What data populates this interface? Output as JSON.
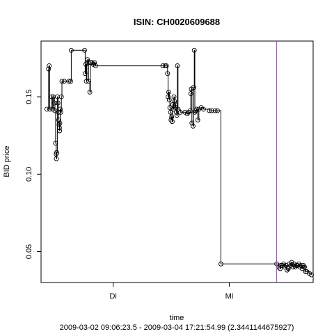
{
  "chart_data": {
    "type": "scatter",
    "title": "ISIN: CH0020609688",
    "xlabel": "time",
    "subtitle": "2009-03-02 09:06:23.5 - 2009-03-04 17:21:54.99 (2.3441144675927)",
    "ylabel": "BID price",
    "xlim": [
      0,
      2.3441144675927
    ],
    "ylim": [
      0.03,
      0.186
    ],
    "x_ticks": [
      {
        "value": 0.6215,
        "label": "Di"
      },
      {
        "value": 1.6215,
        "label": "Mi"
      }
    ],
    "y_ticks": [
      {
        "value": 0.05,
        "label": "0.05"
      },
      {
        "value": 0.1,
        "label": "0.10"
      },
      {
        "value": 0.15,
        "label": "0.15"
      }
    ],
    "vline": {
      "x": 2.03,
      "color": "#a040c0"
    },
    "grid": false,
    "series": [
      {
        "style": "step line with open circles",
        "points": [
          [
            0.05,
            0.142
          ],
          [
            0.065,
            0.168
          ],
          [
            0.07,
            0.17
          ],
          [
            0.075,
            0.142
          ],
          [
            0.09,
            0.15
          ],
          [
            0.1,
            0.142
          ],
          [
            0.105,
            0.15
          ],
          [
            0.115,
            0.146
          ],
          [
            0.12,
            0.141
          ],
          [
            0.125,
            0.12
          ],
          [
            0.13,
            0.113
          ],
          [
            0.132,
            0.11
          ],
          [
            0.135,
            0.114
          ],
          [
            0.14,
            0.15
          ],
          [
            0.145,
            0.146
          ],
          [
            0.15,
            0.14
          ],
          [
            0.152,
            0.135
          ],
          [
            0.155,
            0.132
          ],
          [
            0.158,
            0.13
          ],
          [
            0.16,
            0.128
          ],
          [
            0.162,
            0.133
          ],
          [
            0.165,
            0.142
          ],
          [
            0.17,
            0.14
          ],
          [
            0.175,
            0.15
          ],
          [
            0.18,
            0.16
          ],
          [
            0.2,
            0.16
          ],
          [
            0.24,
            0.16
          ],
          [
            0.255,
            0.16
          ],
          [
            0.26,
            0.18
          ],
          [
            0.375,
            0.18
          ],
          [
            0.38,
            0.165
          ],
          [
            0.385,
            0.171
          ],
          [
            0.39,
            0.16
          ],
          [
            0.395,
            0.172
          ],
          [
            0.4,
            0.174
          ],
          [
            0.41,
            0.16
          ],
          [
            0.42,
            0.153
          ],
          [
            0.425,
            0.172
          ],
          [
            0.43,
            0.172
          ],
          [
            0.44,
            0.172
          ],
          [
            0.45,
            0.171
          ],
          [
            0.46,
            0.172
          ],
          [
            0.47,
            0.17
          ],
          [
            1.05,
            0.17
          ],
          [
            1.07,
            0.17
          ],
          [
            1.08,
            0.17
          ],
          [
            1.09,
            0.165
          ],
          [
            1.095,
            0.15
          ],
          [
            1.1,
            0.153
          ],
          [
            1.105,
            0.148
          ],
          [
            1.11,
            0.143
          ],
          [
            1.115,
            0.14
          ],
          [
            1.12,
            0.135
          ],
          [
            1.125,
            0.137
          ],
          [
            1.13,
            0.134
          ],
          [
            1.135,
            0.145
          ],
          [
            1.14,
            0.142
          ],
          [
            1.145,
            0.15
          ],
          [
            1.15,
            0.147
          ],
          [
            1.155,
            0.145
          ],
          [
            1.16,
            0.143
          ],
          [
            1.165,
            0.14
          ],
          [
            1.17,
            0.138
          ],
          [
            1.175,
            0.17
          ],
          [
            1.18,
            0.142
          ],
          [
            1.2,
            0.14
          ],
          [
            1.24,
            0.14
          ],
          [
            1.26,
            0.139
          ],
          [
            1.27,
            0.14
          ],
          [
            1.285,
            0.141
          ],
          [
            1.29,
            0.152
          ],
          [
            1.295,
            0.155
          ],
          [
            1.3,
            0.133
          ],
          [
            1.31,
            0.131
          ],
          [
            1.315,
            0.156
          ],
          [
            1.32,
            0.18
          ],
          [
            1.325,
            0.14
          ],
          [
            1.33,
            0.141
          ],
          [
            1.34,
            0.142
          ],
          [
            1.35,
            0.135
          ],
          [
            1.36,
            0.142
          ],
          [
            1.38,
            0.143
          ],
          [
            1.4,
            0.142
          ],
          [
            1.45,
            0.141
          ],
          [
            1.47,
            0.141
          ],
          [
            1.5,
            0.141
          ],
          [
            1.52,
            0.141
          ],
          [
            1.55,
            0.042
          ],
          [
            2.03,
            0.042
          ],
          [
            2.05,
            0.04
          ],
          [
            2.06,
            0.039
          ],
          [
            2.065,
            0.041
          ],
          [
            2.08,
            0.041
          ],
          [
            2.09,
            0.042
          ],
          [
            2.1,
            0.04
          ],
          [
            2.11,
            0.041
          ],
          [
            2.12,
            0.038
          ],
          [
            2.13,
            0.039
          ],
          [
            2.14,
            0.042
          ],
          [
            2.15,
            0.041
          ],
          [
            2.16,
            0.043
          ],
          [
            2.17,
            0.04
          ],
          [
            2.18,
            0.042
          ],
          [
            2.19,
            0.04
          ],
          [
            2.2,
            0.041
          ],
          [
            2.21,
            0.041
          ],
          [
            2.22,
            0.042
          ],
          [
            2.23,
            0.04
          ],
          [
            2.24,
            0.041
          ],
          [
            2.25,
            0.039
          ],
          [
            2.26,
            0.041
          ],
          [
            2.27,
            0.04
          ],
          [
            2.28,
            0.037
          ],
          [
            2.29,
            0.037
          ],
          [
            2.31,
            0.036
          ],
          [
            2.33,
            0.035
          ]
        ]
      }
    ]
  }
}
